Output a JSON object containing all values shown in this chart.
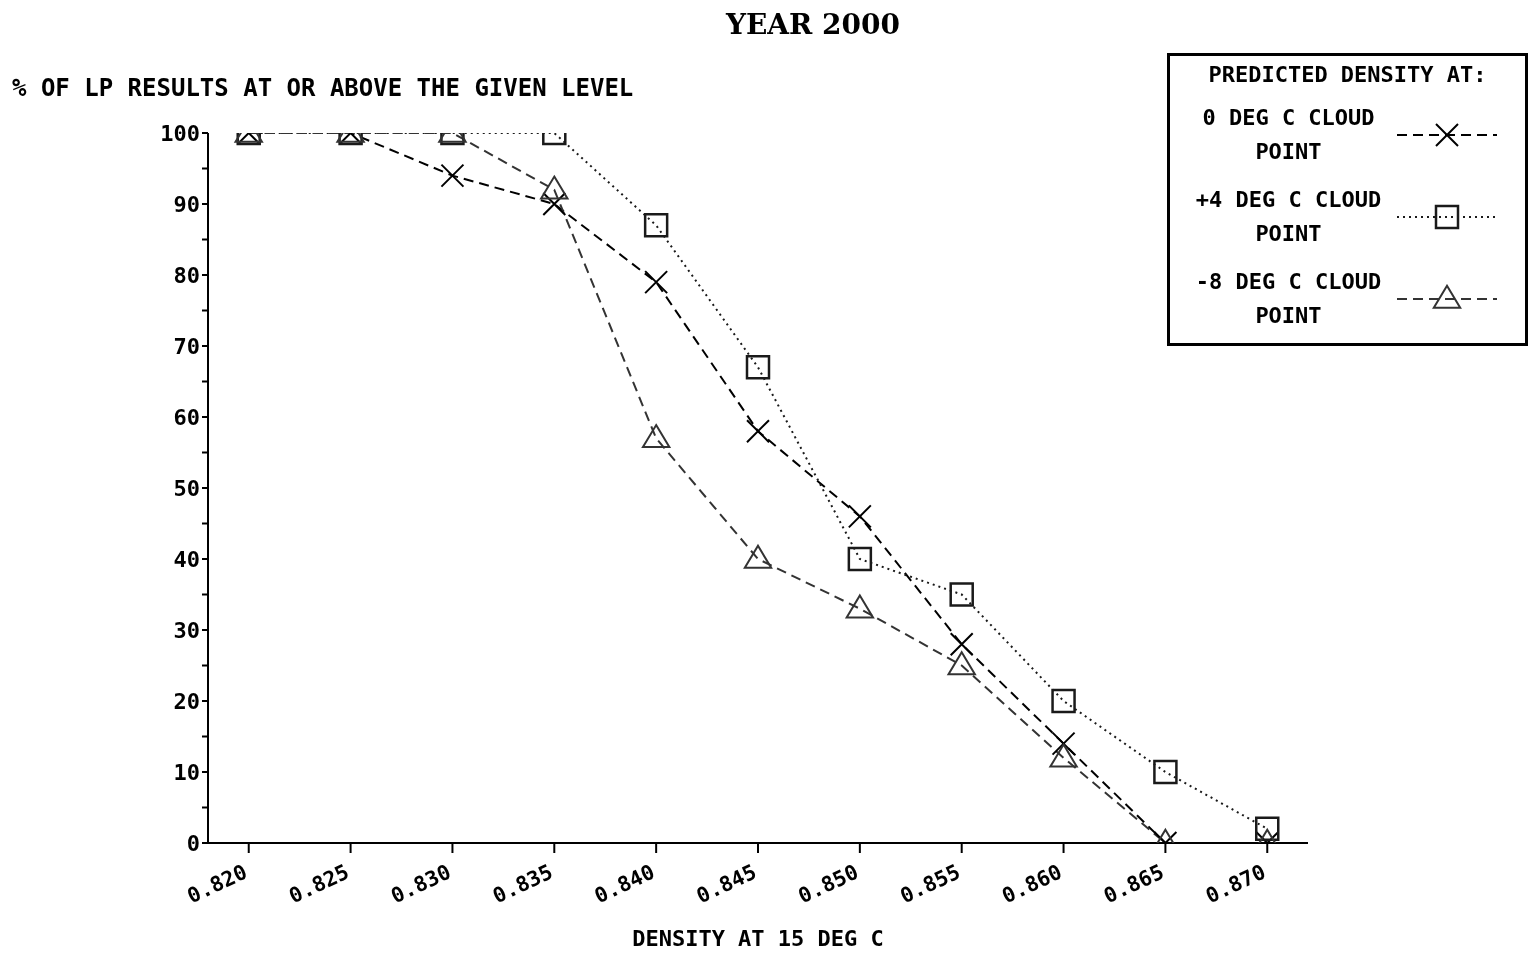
{
  "chart_data": {
    "type": "line",
    "title": "YEAR 2000",
    "ylabel": "% OF LP RESULTS AT OR ABOVE THE GIVEN LEVEL",
    "xlabel": "DENSITY AT 15 DEG C",
    "legend_title": "PREDICTED DENSITY AT:",
    "legend": "top right",
    "grid": false,
    "x": [
      0.82,
      0.825,
      0.83,
      0.835,
      0.84,
      0.845,
      0.85,
      0.855,
      0.86,
      0.865,
      0.87
    ],
    "xlim": [
      0.818,
      0.872
    ],
    "xticks": [
      {
        "value": 0.82,
        "label": "0.820"
      },
      {
        "value": 0.825,
        "label": "0.825"
      },
      {
        "value": 0.83,
        "label": "0.830"
      },
      {
        "value": 0.835,
        "label": "0.835"
      },
      {
        "value": 0.84,
        "label": "0.840"
      },
      {
        "value": 0.845,
        "label": "0.845"
      },
      {
        "value": 0.85,
        "label": "0.850"
      },
      {
        "value": 0.855,
        "label": "0.855"
      },
      {
        "value": 0.86,
        "label": "0.860"
      },
      {
        "value": 0.865,
        "label": "0.865"
      },
      {
        "value": 0.87,
        "label": "0.870"
      }
    ],
    "ylim": [
      0,
      100
    ],
    "yticks": [
      0,
      {
        "value": 5,
        "label": null
      },
      10,
      {
        "value": 15,
        "label": null
      },
      20,
      {
        "value": 25,
        "label": null
      },
      30,
      {
        "value": 35,
        "label": null
      },
      40,
      {
        "value": 45,
        "label": null
      },
      50,
      {
        "value": 55,
        "label": null
      },
      60,
      {
        "value": 65,
        "label": null
      },
      70,
      {
        "value": 75,
        "label": null
      },
      80,
      {
        "value": 85,
        "label": null
      },
      90,
      {
        "value": 95,
        "label": null
      },
      100
    ],
    "series": [
      {
        "name": "0 DEG C CLOUD POINT",
        "color": "#000000",
        "marker": "cross",
        "line_style": "dashed",
        "values": [
          100,
          100,
          94,
          90,
          79,
          58,
          46,
          28,
          14,
          0,
          0
        ]
      },
      {
        "name": "+4 DEG C CLOUD POINT",
        "color": "#1a1a1a",
        "marker": "square",
        "line_style": "dotted",
        "values": [
          100,
          100,
          100,
          100,
          87,
          67,
          40,
          35,
          20,
          10,
          2
        ]
      },
      {
        "name": "-8 DEG C CLOUD POINT",
        "color": "#333333",
        "marker": "triangle",
        "line_style": "dashed",
        "values": [
          100,
          100,
          100,
          92,
          57,
          40,
          33,
          25,
          12,
          0,
          0
        ]
      }
    ]
  }
}
